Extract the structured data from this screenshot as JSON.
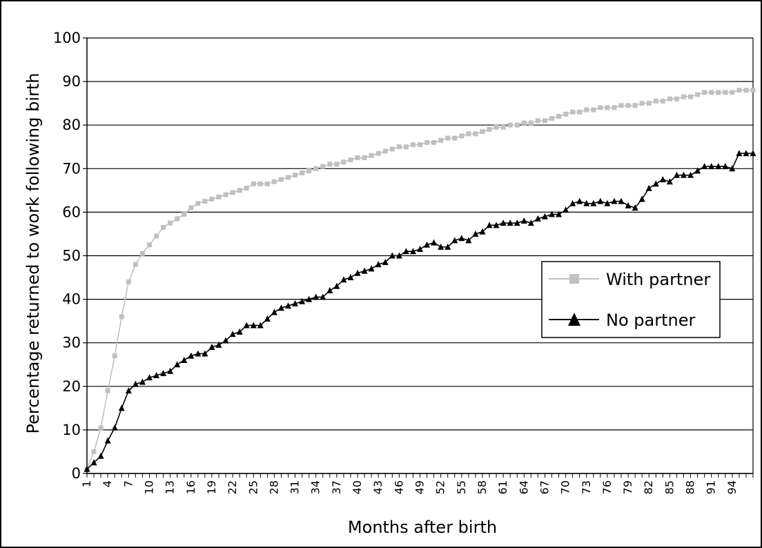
{
  "chart_data": {
    "type": "line",
    "title": "",
    "xlabel": "Months after birth",
    "ylabel": "Percentage returned to work following birth",
    "ylim": [
      0,
      100
    ],
    "yticks": [
      "0",
      "10",
      "20",
      "30",
      "40",
      "50",
      "60",
      "70",
      "80",
      "90",
      "100"
    ],
    "xtick_labels": [
      "1",
      "4",
      "7",
      "10",
      "13",
      "16",
      "19",
      "22",
      "25",
      "28",
      "31",
      "34",
      "37",
      "40",
      "43",
      "46",
      "49",
      "52",
      "55",
      "58",
      "61",
      "64",
      "67",
      "70",
      "73",
      "76",
      "79",
      "82",
      "85",
      "88",
      "91",
      "94"
    ],
    "xtick_values": [
      1,
      4,
      7,
      10,
      13,
      16,
      19,
      22,
      25,
      28,
      31,
      34,
      37,
      40,
      43,
      46,
      49,
      52,
      55,
      58,
      61,
      64,
      67,
      70,
      73,
      76,
      79,
      82,
      85,
      88,
      91,
      94
    ],
    "xlim": [
      1,
      97
    ],
    "grid": "horizontal",
    "legend_position": "right",
    "series": [
      {
        "name": "With partner",
        "color": "#c0c0c0",
        "marker": "square",
        "x": [
          1,
          2,
          3,
          4,
          5,
          6,
          7,
          8,
          9,
          10,
          11,
          12,
          13,
          14,
          15,
          16,
          17,
          18,
          19,
          20,
          21,
          22,
          23,
          24,
          25,
          26,
          27,
          28,
          29,
          30,
          31,
          32,
          33,
          34,
          35,
          36,
          37,
          38,
          39,
          40,
          41,
          42,
          43,
          44,
          45,
          46,
          47,
          48,
          49,
          50,
          51,
          52,
          53,
          54,
          55,
          56,
          57,
          58,
          59,
          60,
          61,
          62,
          63,
          64,
          65,
          66,
          67,
          68,
          69,
          70,
          71,
          72,
          73,
          74,
          75,
          76,
          77,
          78,
          79,
          80,
          81,
          82,
          83,
          84,
          85,
          86,
          87,
          88,
          89,
          90,
          91,
          92,
          93,
          94,
          95,
          96,
          97
        ],
        "values": [
          1,
          5,
          10.5,
          19,
          27,
          36,
          44,
          48,
          50.5,
          52.5,
          54.5,
          56.5,
          57.5,
          58.5,
          59.5,
          61,
          62,
          62.5,
          63,
          63.5,
          64,
          64.5,
          65,
          65.5,
          66.5,
          66.5,
          66.5,
          67,
          67.5,
          68,
          68.5,
          69,
          69.5,
          70,
          70.5,
          71,
          71,
          71.5,
          72,
          72.5,
          72.5,
          73,
          73.5,
          74,
          74.5,
          75,
          75,
          75.5,
          75.5,
          76,
          76,
          76.5,
          77,
          77,
          77.5,
          78,
          78,
          78.5,
          79,
          79.5,
          79.5,
          80,
          80,
          80.5,
          80.5,
          81,
          81,
          81.5,
          82,
          82.5,
          83,
          83,
          83.5,
          83.5,
          84,
          84,
          84,
          84.5,
          84.5,
          84.5,
          85,
          85,
          85.5,
          85.5,
          86,
          86,
          86.5,
          86.5,
          87,
          87.5,
          87.5,
          87.5,
          87.5,
          87.5,
          88,
          88,
          88
        ]
      },
      {
        "name": "No partner",
        "color": "#000000",
        "marker": "triangle",
        "x": [
          1,
          2,
          3,
          4,
          5,
          6,
          7,
          8,
          9,
          10,
          11,
          12,
          13,
          14,
          15,
          16,
          17,
          18,
          19,
          20,
          21,
          22,
          23,
          24,
          25,
          26,
          27,
          28,
          29,
          30,
          31,
          32,
          33,
          34,
          35,
          36,
          37,
          38,
          39,
          40,
          41,
          42,
          43,
          44,
          45,
          46,
          47,
          48,
          49,
          50,
          51,
          52,
          53,
          54,
          55,
          56,
          57,
          58,
          59,
          60,
          61,
          62,
          63,
          64,
          65,
          66,
          67,
          68,
          69,
          70,
          71,
          72,
          73,
          74,
          75,
          76,
          77,
          78,
          79,
          80,
          81,
          82,
          83,
          84,
          85,
          86,
          87,
          88,
          89,
          90,
          91,
          92,
          93,
          94,
          95,
          96,
          97
        ],
        "values": [
          1,
          2.5,
          4,
          7.5,
          10.5,
          15,
          19,
          20.5,
          21,
          22,
          22.5,
          23,
          23.5,
          25,
          26,
          27,
          27.5,
          27.5,
          29,
          29.5,
          30.5,
          32,
          32.5,
          34,
          34,
          34,
          35.5,
          37,
          38,
          38.5,
          39,
          39.5,
          40,
          40.5,
          40.5,
          42,
          43,
          44.5,
          45,
          46,
          46.5,
          47,
          48,
          48.5,
          50,
          50,
          51,
          51,
          51.5,
          52.5,
          53,
          52,
          52,
          53.5,
          54,
          53.5,
          55,
          55.5,
          57,
          57,
          57.5,
          57.5,
          57.5,
          58,
          57.5,
          58.5,
          59,
          59.5,
          59.5,
          60.5,
          62,
          62.5,
          62,
          62,
          62.5,
          62,
          62.5,
          62.5,
          61.5,
          61,
          63,
          65.5,
          66.5,
          67.5,
          67,
          68.5,
          68.5,
          68.5,
          69.5,
          70.5,
          70.5,
          70.5,
          70.5,
          70,
          73.5,
          73.5,
          73.5
        ]
      }
    ]
  }
}
